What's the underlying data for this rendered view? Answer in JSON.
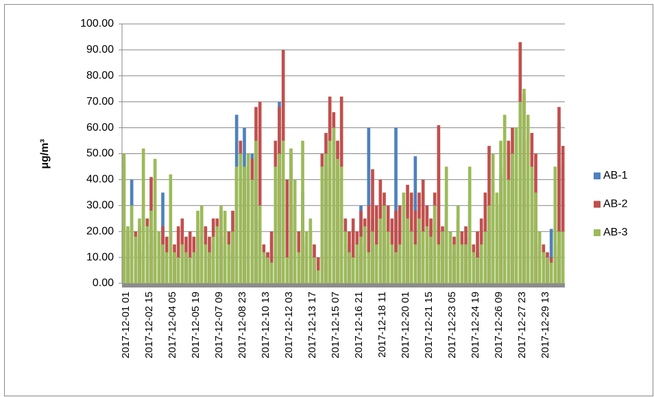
{
  "chart_data": {
    "type": "bar",
    "y_label": "μg/m³",
    "categories": [
      "2017-12-01 01",
      null,
      null,
      null,
      null,
      null,
      "2017-12-02 15",
      null,
      null,
      null,
      null,
      null,
      "2017-12-04 05",
      null,
      null,
      null,
      null,
      null,
      "2017-12-05 19",
      null,
      null,
      null,
      null,
      null,
      "2017-12-07 09",
      null,
      null,
      null,
      null,
      null,
      "2017-12-08 23",
      null,
      null,
      null,
      null,
      null,
      "2017-12-10 13",
      null,
      null,
      null,
      null,
      null,
      "2017-12-12 03",
      null,
      null,
      null,
      null,
      null,
      "2017-12-13 17",
      null,
      null,
      null,
      null,
      null,
      "2017-12-15 07",
      null,
      null,
      null,
      null,
      null,
      "2017-12-16 21",
      null,
      null,
      null,
      null,
      null,
      "2017-12-18 11",
      null,
      null,
      null,
      null,
      null,
      "2017-12-20 01",
      null,
      null,
      null,
      null,
      null,
      "2017-12-21 15",
      null,
      null,
      null,
      null,
      null,
      "2017-12-23 05",
      null,
      null,
      null,
      null,
      null,
      "2017-12-24 19",
      null,
      null,
      null,
      null,
      null,
      "2017-12-26 09",
      null,
      null,
      null,
      null,
      null,
      "2017-12-27 23",
      null,
      null,
      null,
      null,
      null,
      "2017-12-29 13",
      null,
      null,
      null,
      null,
      null
    ],
    "series": [
      {
        "name": "AB-1",
        "color": "#4f81bd",
        "values": [
          20,
          15,
          40,
          18,
          15,
          12,
          15,
          20,
          18,
          15,
          35,
          12,
          10,
          9,
          12,
          15,
          12,
          10,
          12,
          15,
          18,
          12,
          10,
          15,
          18,
          20,
          15,
          12,
          20,
          65,
          40,
          60,
          45,
          50,
          55,
          25,
          10,
          12,
          18,
          40,
          70,
          40,
          10,
          45,
          30,
          10,
          35,
          15,
          15,
          8,
          5,
          40,
          45,
          60,
          55,
          45,
          40,
          15,
          10,
          15,
          12,
          30,
          15,
          60,
          25,
          15,
          30,
          20,
          15,
          12,
          60,
          20,
          25,
          15,
          20,
          49,
          15,
          20,
          20,
          15,
          25,
          50,
          18,
          25,
          15,
          12,
          20,
          15,
          12,
          32,
          10,
          12,
          15,
          20,
          28,
          40,
          30,
          42,
          50,
          53,
          45,
          60,
          70,
          55,
          40,
          35,
          25,
          15,
          12,
          10,
          21,
          10,
          62,
          45
        ]
      },
      {
        "name": "AB-2",
        "color": "#c0504d",
        "values": [
          47,
          20,
          18,
          20,
          22,
          30,
          25,
          41,
          20,
          18,
          22,
          18,
          20,
          15,
          22,
          25,
          18,
          20,
          18,
          20,
          25,
          22,
          18,
          25,
          25,
          28,
          18,
          20,
          28,
          44,
          55,
          40,
          45,
          48,
          68,
          70,
          15,
          12,
          20,
          55,
          68,
          90,
          40,
          50,
          30,
          20,
          25,
          18,
          20,
          15,
          10,
          50,
          58,
          72,
          66,
          55,
          72,
          25,
          20,
          25,
          20,
          28,
          25,
          30,
          44,
          30,
          40,
          35,
          30,
          25,
          28,
          30,
          30,
          38,
          35,
          28,
          35,
          40,
          30,
          25,
          35,
          61,
          22,
          30,
          20,
          18,
          25,
          20,
          22,
          18,
          15,
          20,
          25,
          35,
          53,
          40,
          30,
          35,
          45,
          55,
          60,
          40,
          93,
          73,
          55,
          58,
          50,
          20,
          15,
          12,
          10,
          15,
          68,
          53
        ]
      },
      {
        "name": "AB-3",
        "color": "#9bbb59",
        "values": [
          50,
          22,
          30,
          18,
          25,
          52,
          22,
          28,
          48,
          20,
          15,
          12,
          42,
          12,
          10,
          15,
          12,
          10,
          12,
          28,
          30,
          15,
          12,
          18,
          22,
          30,
          28,
          15,
          20,
          45,
          50,
          45,
          50,
          40,
          55,
          30,
          12,
          10,
          8,
          45,
          50,
          55,
          10,
          52,
          40,
          12,
          55,
          20,
          25,
          10,
          5,
          45,
          50,
          55,
          60,
          48,
          45,
          20,
          12,
          10,
          15,
          18,
          22,
          12,
          20,
          15,
          25,
          30,
          20,
          15,
          12,
          15,
          35,
          25,
          20,
          15,
          25,
          20,
          22,
          18,
          30,
          15,
          20,
          45,
          20,
          15,
          30,
          15,
          15,
          45,
          12,
          10,
          15,
          20,
          30,
          50,
          35,
          55,
          65,
          40,
          50,
          60,
          70,
          75,
          65,
          45,
          35,
          20,
          12,
          10,
          8,
          45,
          20,
          20
        ]
      }
    ],
    "ylim": [
      0,
      100
    ],
    "yticks": [
      {
        "value": 0,
        "label": "0.00"
      },
      {
        "value": 10,
        "label": "10.00"
      },
      {
        "value": 20,
        "label": "20.00"
      },
      {
        "value": 30,
        "label": "30.00"
      },
      {
        "value": 40,
        "label": "40.00"
      },
      {
        "value": 50,
        "label": "50.00"
      },
      {
        "value": 60,
        "label": "60.00"
      },
      {
        "value": 70,
        "label": "70.00"
      },
      {
        "value": 80,
        "label": "80.00"
      },
      {
        "value": 90,
        "label": "90.00"
      },
      {
        "value": 100,
        "label": "100.00"
      }
    ],
    "grid": true,
    "legend": "right"
  }
}
